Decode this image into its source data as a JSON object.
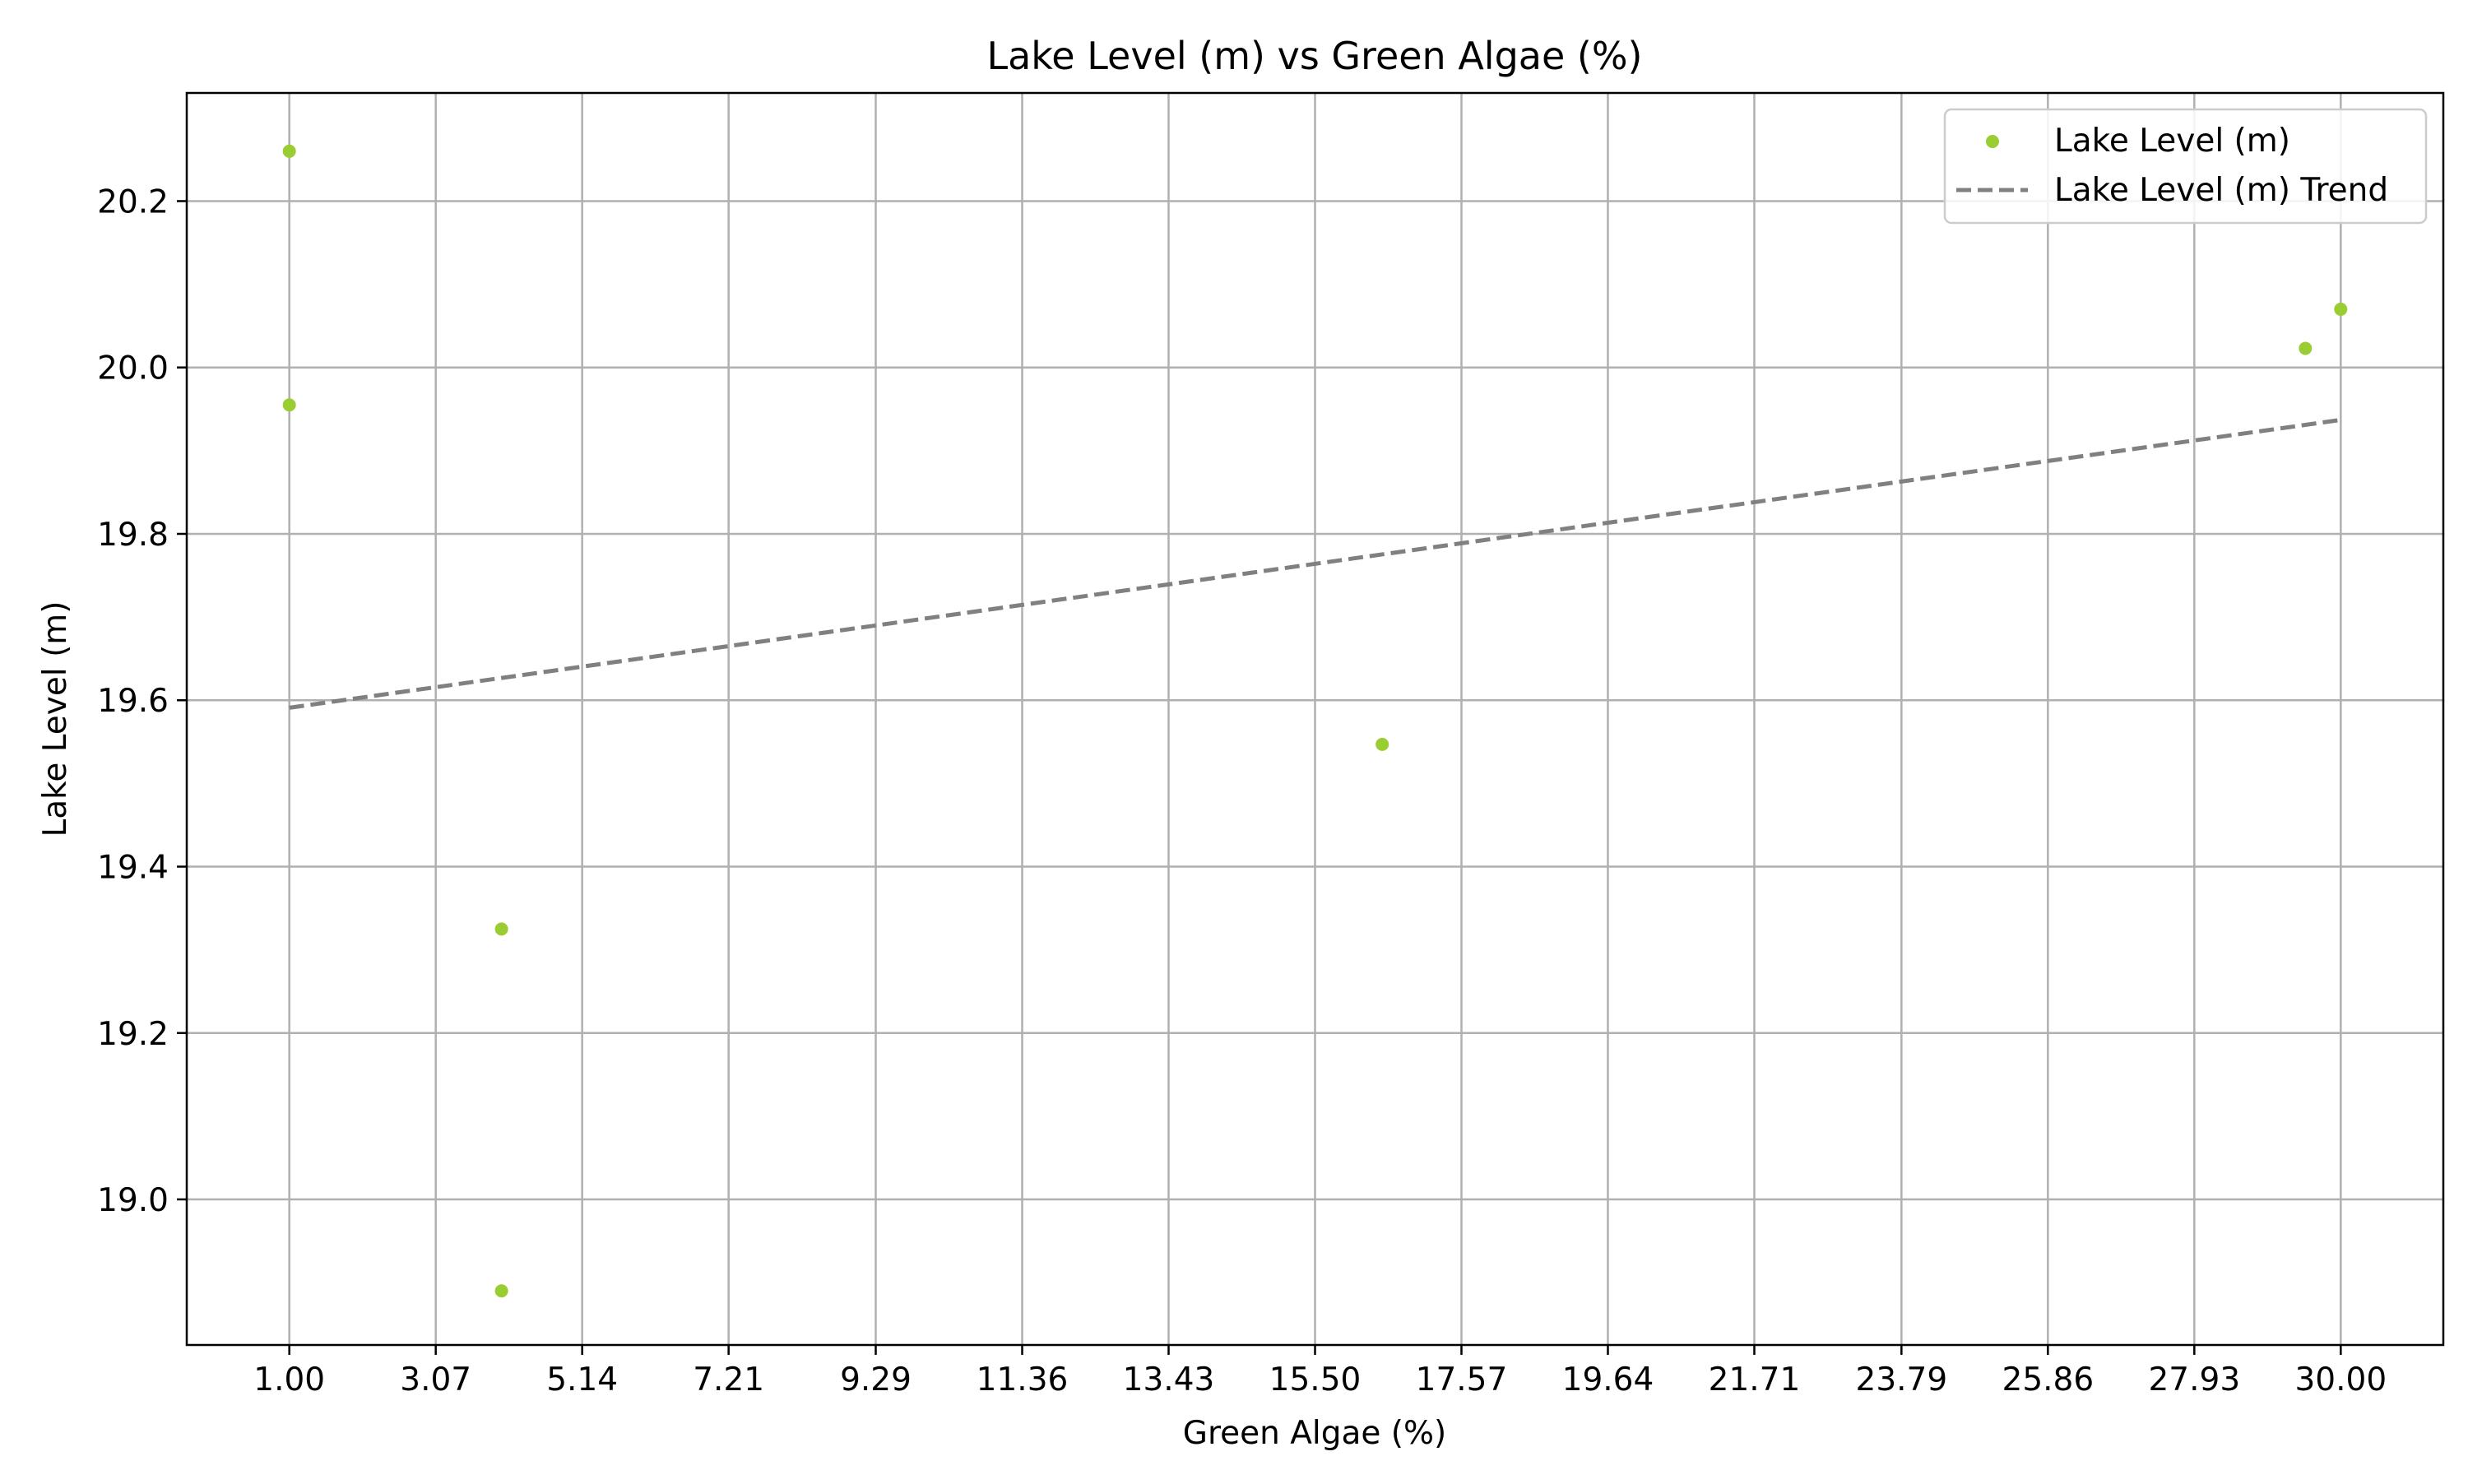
{
  "chart_data": {
    "type": "scatter",
    "title": "Lake Level (m) vs Green Algae (%)",
    "xlabel": "Green Algae (%)",
    "ylabel": "Lake Level (m)",
    "xlim": [
      -0.45,
      31.45
    ],
    "ylim": [
      18.825,
      20.33
    ],
    "x_ticks": [
      1.0,
      3.07,
      5.14,
      7.21,
      9.29,
      11.36,
      13.43,
      15.5,
      17.57,
      19.64,
      21.71,
      23.79,
      25.86,
      27.93,
      30.0
    ],
    "x_tick_labels": [
      "1.00",
      "3.07",
      "5.14",
      "7.21",
      "9.29",
      "11.36",
      "13.43",
      "15.50",
      "17.57",
      "19.64",
      "21.71",
      "23.79",
      "25.86",
      "27.93",
      "30.00"
    ],
    "y_ticks": [
      19.0,
      19.2,
      19.4,
      19.6,
      19.8,
      20.0,
      20.2
    ],
    "y_tick_labels": [
      "19.0",
      "19.2",
      "19.4",
      "19.6",
      "19.8",
      "20.0",
      "20.2"
    ],
    "grid": true,
    "legend_position": "top-right",
    "series": [
      {
        "name": "Lake Level (m)",
        "kind": "scatter",
        "color": "#9acd32",
        "points": [
          {
            "x": 1.0,
            "y": 20.26
          },
          {
            "x": 1.0,
            "y": 19.955
          },
          {
            "x": 4.0,
            "y": 19.325
          },
          {
            "x": 4.0,
            "y": 18.89
          },
          {
            "x": 16.45,
            "y": 19.547
          },
          {
            "x": 29.5,
            "y": 20.023
          },
          {
            "x": 30.0,
            "y": 20.07
          }
        ]
      },
      {
        "name": "Lake Level (m) Trend",
        "kind": "line",
        "style": "dashed",
        "color": "#808080",
        "points": [
          {
            "x": 1.0,
            "y": 19.591
          },
          {
            "x": 30.0,
            "y": 19.937
          }
        ]
      }
    ]
  }
}
